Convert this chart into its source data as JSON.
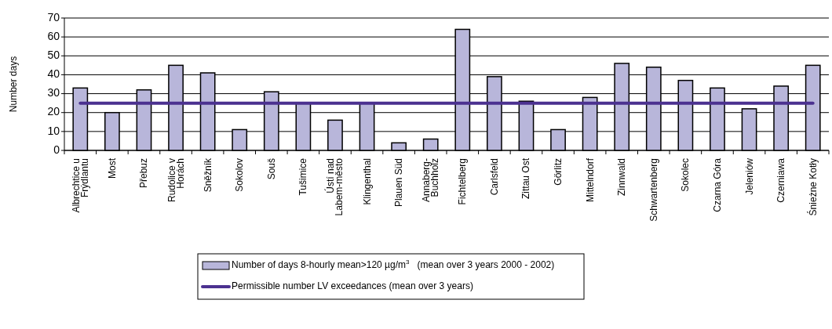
{
  "chart_data": {
    "type": "bar",
    "ylabel": "Number days",
    "categories": [
      "Albrechtice u Frýdlantu",
      "Most",
      "Přebuz",
      "Rudolice v Horách",
      "Sněžník",
      "Sokolov",
      "Souš",
      "Tušimice",
      "Ústí nad Labem-město",
      "Klingenthal",
      "Plauen Süd",
      "Annaberg-Buchholz",
      "Fichtelberg",
      "Carlsfeld",
      "Zittau Ost",
      "Görlitz",
      "Mittelndorf",
      "Zinnwald",
      "Schwartenberg",
      "Sokolec",
      "Czarna Góra",
      "Jeleniów",
      "Czerniawa",
      "Śnieżne Kotły"
    ],
    "series": [
      {
        "name": "Number of days 8-hourly mean>120 µg/m$^{3}$   (mean over 3 years 2000 - 2002)",
        "color": "#b8b6da",
        "values": [
          33,
          20,
          32,
          45,
          41,
          11,
          31,
          25,
          16,
          25,
          4,
          6,
          64,
          39,
          26,
          11,
          28,
          46,
          44,
          37,
          33,
          22,
          34,
          45
        ]
      },
      {
        "name": "Permissible number LV exceedances (mean over 3 years)",
        "type": "line",
        "color": "#4b3190",
        "values": [
          25,
          25,
          25,
          25,
          25,
          25,
          25,
          25,
          25,
          25,
          25,
          25,
          25,
          25,
          25,
          25,
          25,
          25,
          25,
          25,
          25,
          25,
          25,
          25
        ]
      }
    ],
    "ylim": [
      0,
      70
    ],
    "yticks": [
      0,
      10,
      20,
      30,
      40,
      50,
      60,
      70
    ],
    "grid": "y",
    "legend": "bottom"
  }
}
